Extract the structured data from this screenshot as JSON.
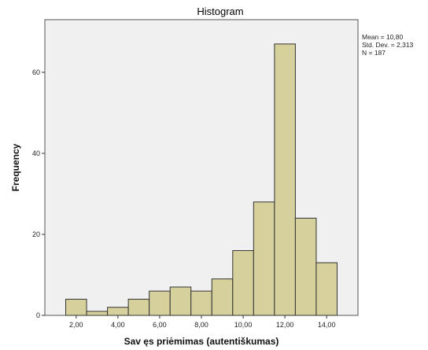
{
  "chart_data": {
    "type": "bar",
    "title": "Histogram",
    "xlabel": "Sav ęs priėmimas (autentiškumas)",
    "ylabel": "Frequency",
    "x_ticks": [
      "2,00",
      "4,00",
      "6,00",
      "8,00",
      "10,00",
      "12,00",
      "14,00"
    ],
    "x_tick_values": [
      2,
      4,
      6,
      8,
      10,
      12,
      14
    ],
    "y_ticks": [
      "0",
      "20",
      "40",
      "60"
    ],
    "y_tick_values": [
      0,
      20,
      40,
      60
    ],
    "xlim": [
      0.5,
      15.5
    ],
    "ylim": [
      0,
      73
    ],
    "bin_width": 1,
    "bins": [
      {
        "center": 2,
        "count": 4
      },
      {
        "center": 3,
        "count": 1
      },
      {
        "center": 4,
        "count": 2
      },
      {
        "center": 5,
        "count": 4
      },
      {
        "center": 6,
        "count": 6
      },
      {
        "center": 7,
        "count": 7
      },
      {
        "center": 8,
        "count": 6
      },
      {
        "center": 9,
        "count": 9
      },
      {
        "center": 10,
        "count": 16
      },
      {
        "center": 11,
        "count": 28
      },
      {
        "center": 12,
        "count": 67
      },
      {
        "center": 13,
        "count": 24
      },
      {
        "center": 14,
        "count": 13
      }
    ],
    "stats": {
      "mean": "Mean = 10,80",
      "std": "Std. Dev. = 2,313",
      "n": "N = 187"
    },
    "colors": {
      "bar_fill": "#d6d19c",
      "bar_stroke": "#333333",
      "plot_background": "#f0f0f0"
    },
    "grid": false
  }
}
